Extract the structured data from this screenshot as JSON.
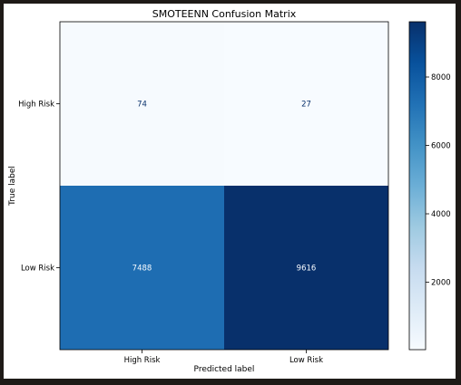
{
  "chart_data": {
    "type": "heatmap",
    "title": "SMOTEENN Confusion Matrix",
    "xlabel": "Predicted label",
    "ylabel": "True label",
    "x_categories": [
      "High Risk",
      "Low Risk"
    ],
    "y_categories": [
      "High Risk",
      "Low Risk"
    ],
    "values": [
      [
        74,
        27
      ],
      [
        7488,
        9616
      ]
    ],
    "colormap": "Blues",
    "colorbar": {
      "range": [
        27,
        9616
      ],
      "ticks": [
        2000,
        4000,
        6000,
        8000
      ]
    },
    "colors": {
      "cell_74": "#f6fafe",
      "cell_27": "#f7fbff",
      "cell_7488": "#1e6db2",
      "cell_9616": "#08306b",
      "text_light": "#f7fbff",
      "text_dark": "#08306b"
    }
  }
}
